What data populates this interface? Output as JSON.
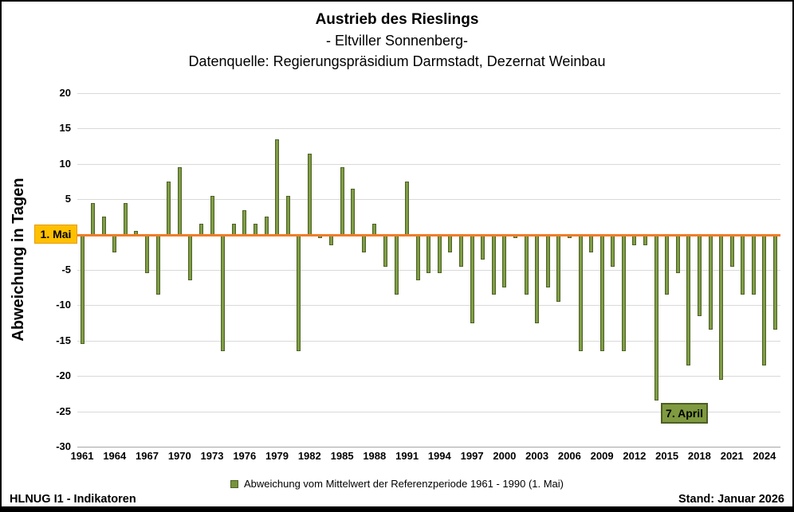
{
  "title": {
    "line1": "Austrieb des Rieslings",
    "line2": "- Eltviller Sonnenberg-",
    "line3": "Datenquelle: Regierungspräsidium Darmstadt, Dezernat Weinbau"
  },
  "chart_data": {
    "type": "bar",
    "title": "Austrieb des Rieslings - Eltviller Sonnenberg",
    "xlabel": "",
    "ylabel": "Abweichung in Tagen",
    "ylim": [
      -30,
      20
    ],
    "ytick_step": 5,
    "grid": true,
    "categories": [
      1961,
      1962,
      1963,
      1964,
      1965,
      1966,
      1967,
      1968,
      1969,
      1970,
      1971,
      1972,
      1973,
      1974,
      1975,
      1976,
      1977,
      1978,
      1979,
      1980,
      1981,
      1982,
      1983,
      1984,
      1985,
      1986,
      1987,
      1988,
      1989,
      1990,
      1991,
      1992,
      1993,
      1994,
      1995,
      1996,
      1997,
      1998,
      1999,
      2000,
      2001,
      2002,
      2003,
      2004,
      2005,
      2006,
      2007,
      2008,
      2009,
      2010,
      2011,
      2012,
      2013,
      2014,
      2015,
      2016,
      2017,
      2018,
      2019,
      2020,
      2021,
      2022,
      2023,
      2024,
      2025
    ],
    "values": [
      -15.5,
      4.5,
      2.5,
      -2.5,
      4.5,
      0.5,
      -5.5,
      -8.5,
      7.5,
      9.5,
      -6.5,
      1.5,
      5.5,
      -16.5,
      1.5,
      3.5,
      1.5,
      2.5,
      13.5,
      5.5,
      -16.5,
      11.5,
      -0.5,
      -1.5,
      9.5,
      6.5,
      -2.5,
      1.5,
      -4.5,
      -8.5,
      7.5,
      -6.5,
      -5.5,
      -5.5,
      -2.5,
      -4.5,
      -12.5,
      -3.5,
      -8.5,
      -7.5,
      -0.5,
      -8.5,
      -12.5,
      -7.5,
      -9.5,
      -0.5,
      -16.5,
      -2.5,
      -16.5,
      -4.5,
      -16.5,
      -1.5,
      -1.5,
      -23.5,
      -8.5,
      -5.5,
      -18.5,
      -11.5,
      -13.5,
      -20.5,
      -4.5,
      -8.5,
      -8.5,
      -18.5,
      -13.5
    ],
    "x_axis_tick_labels": [
      "1961",
      "1964",
      "1967",
      "1970",
      "1973",
      "1976",
      "1979",
      "1982",
      "1985",
      "1988",
      "1991",
      "1994",
      "1997",
      "2000",
      "2003",
      "2006",
      "2009",
      "2012",
      "2015",
      "2018",
      "2021",
      "2024"
    ],
    "y_axis_tick_labels": [
      "20",
      "15",
      "10",
      "5",
      "-5",
      "-10",
      "-15",
      "-20",
      "-25",
      "-30"
    ],
    "baseline_value": 0,
    "baseline_label": "1. Mai",
    "annotation_label": "7. April",
    "annotation_year": 2014,
    "legend_label": "Abweichung vom Mittelwert der Referenzperiode 1961 - 1990 (1. Mai)",
    "legend_position": "bottom",
    "bar_color": "#77933C",
    "bar_border_color": "#4F6228",
    "baseline_color": "#F07C28",
    "baseline_label_bg": "#FFC000",
    "annotation_bg": "#7F9A40",
    "annotation_border_color": "#4C5E24",
    "gridline_color": "#D9D9D9"
  },
  "footer": {
    "left": "HLNUG I1 - Indikatoren",
    "right": "Stand: Januar 2026"
  }
}
